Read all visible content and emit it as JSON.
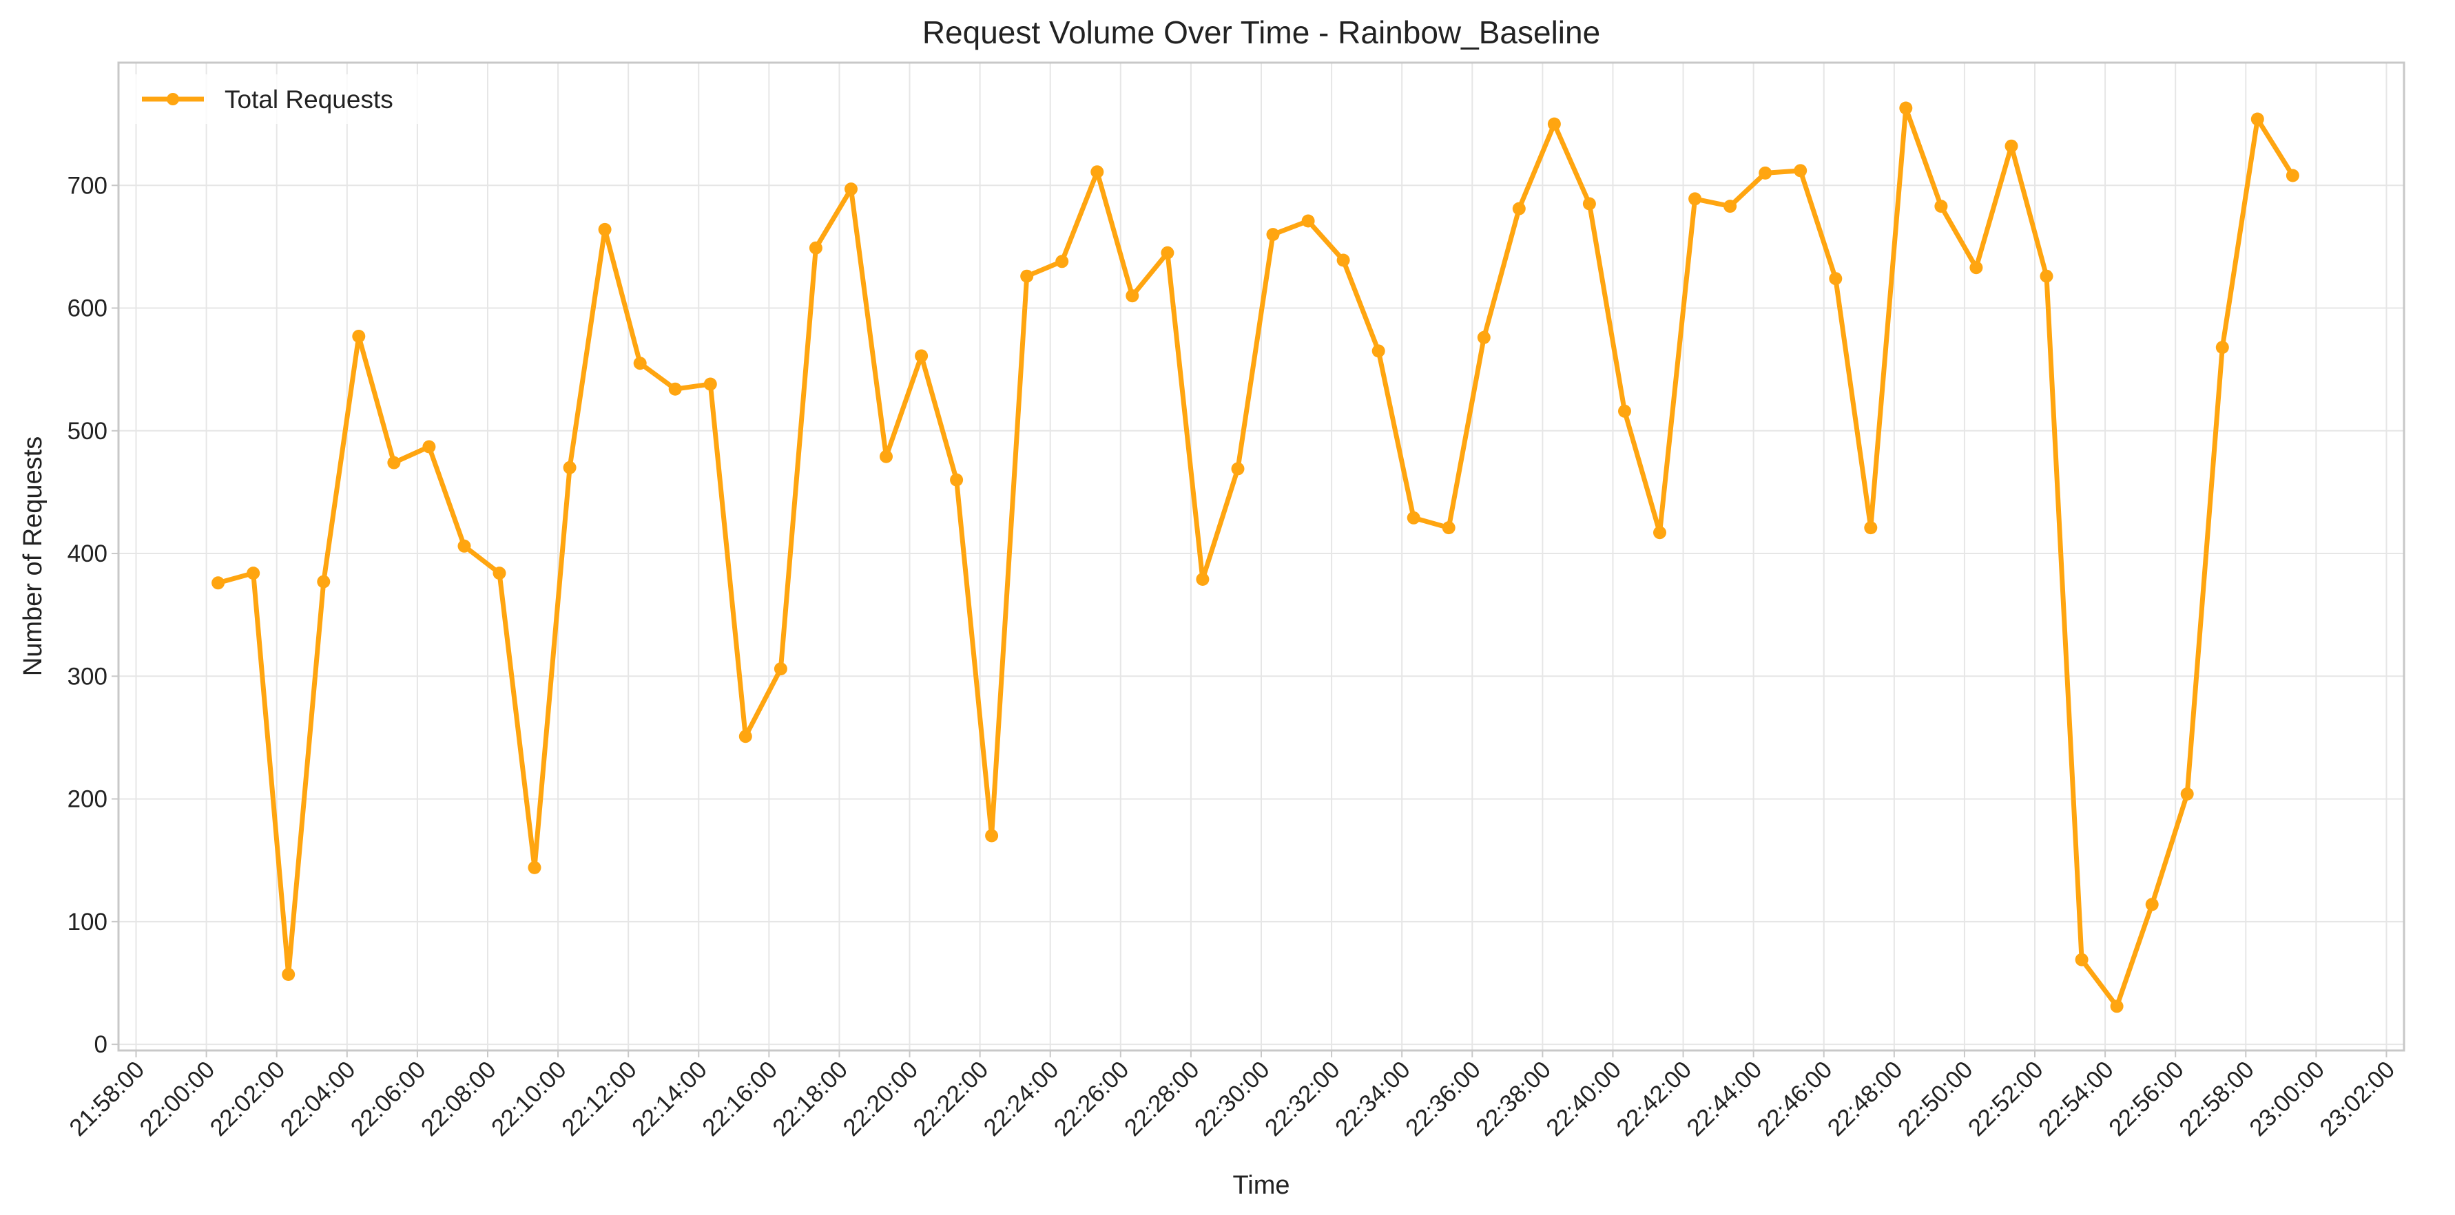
{
  "chart_data": {
    "type": "line",
    "title": "Request Volume Over Time - Rainbow_Baseline",
    "xlabel": "Time",
    "ylabel": "Number of Requests",
    "x_tick_labels": [
      "21:58:00",
      "22:00:00",
      "22:02:00",
      "22:04:00",
      "22:06:00",
      "22:08:00",
      "22:10:00",
      "22:12:00",
      "22:14:00",
      "22:16:00",
      "22:18:00",
      "22:20:00",
      "22:22:00",
      "22:24:00",
      "22:26:00",
      "22:28:00",
      "22:30:00",
      "22:32:00",
      "22:34:00",
      "22:36:00",
      "22:38:00",
      "22:40:00",
      "22:42:00",
      "22:44:00",
      "22:46:00",
      "22:48:00",
      "22:50:00",
      "22:52:00",
      "22:54:00",
      "22:56:00",
      "22:58:00",
      "23:00:00",
      "23:02:00"
    ],
    "y_ticks": [
      0,
      100,
      200,
      300,
      400,
      500,
      600,
      700
    ],
    "ylim": [
      -5,
      800
    ],
    "xlim": [
      "21:57:30",
      "23:02:30"
    ],
    "grid": true,
    "legend": "upper-left",
    "color": "#ffa510",
    "series": [
      {
        "name": "Total Requests",
        "x": [
          "22:00:20",
          "22:01:20",
          "22:02:20",
          "22:03:20",
          "22:04:20",
          "22:05:20",
          "22:06:20",
          "22:07:20",
          "22:08:20",
          "22:09:20",
          "22:10:20",
          "22:11:20",
          "22:12:20",
          "22:13:20",
          "22:14:20",
          "22:15:20",
          "22:16:20",
          "22:17:20",
          "22:18:20",
          "22:19:20",
          "22:20:20",
          "22:21:20",
          "22:22:20",
          "22:23:20",
          "22:24:20",
          "22:25:20",
          "22:26:20",
          "22:27:20",
          "22:28:20",
          "22:29:20",
          "22:30:20",
          "22:31:20",
          "22:32:20",
          "22:33:20",
          "22:34:20",
          "22:35:20",
          "22:36:20",
          "22:37:20",
          "22:38:20",
          "22:39:20",
          "22:40:20",
          "22:41:20",
          "22:42:20",
          "22:43:20",
          "22:44:20",
          "22:45:20",
          "22:46:20",
          "22:47:20",
          "22:48:20",
          "22:49:20",
          "22:50:20",
          "22:51:20",
          "22:52:20",
          "22:53:20",
          "22:54:20",
          "22:55:20",
          "22:56:20",
          "22:57:20",
          "22:58:20",
          "22:59:20"
        ],
        "values": [
          376,
          384,
          57,
          377,
          577,
          474,
          487,
          406,
          384,
          144,
          470,
          664,
          555,
          534,
          538,
          251,
          306,
          649,
          697,
          479,
          561,
          460,
          170,
          626,
          638,
          711,
          610,
          645,
          379,
          469,
          660,
          671,
          639,
          565,
          429,
          421,
          576,
          681,
          750,
          685,
          516,
          417,
          689,
          683,
          710,
          712,
          624,
          421,
          763,
          683,
          633,
          732,
          626,
          69,
          31,
          114,
          204,
          568,
          754,
          708
        ]
      }
    ]
  }
}
